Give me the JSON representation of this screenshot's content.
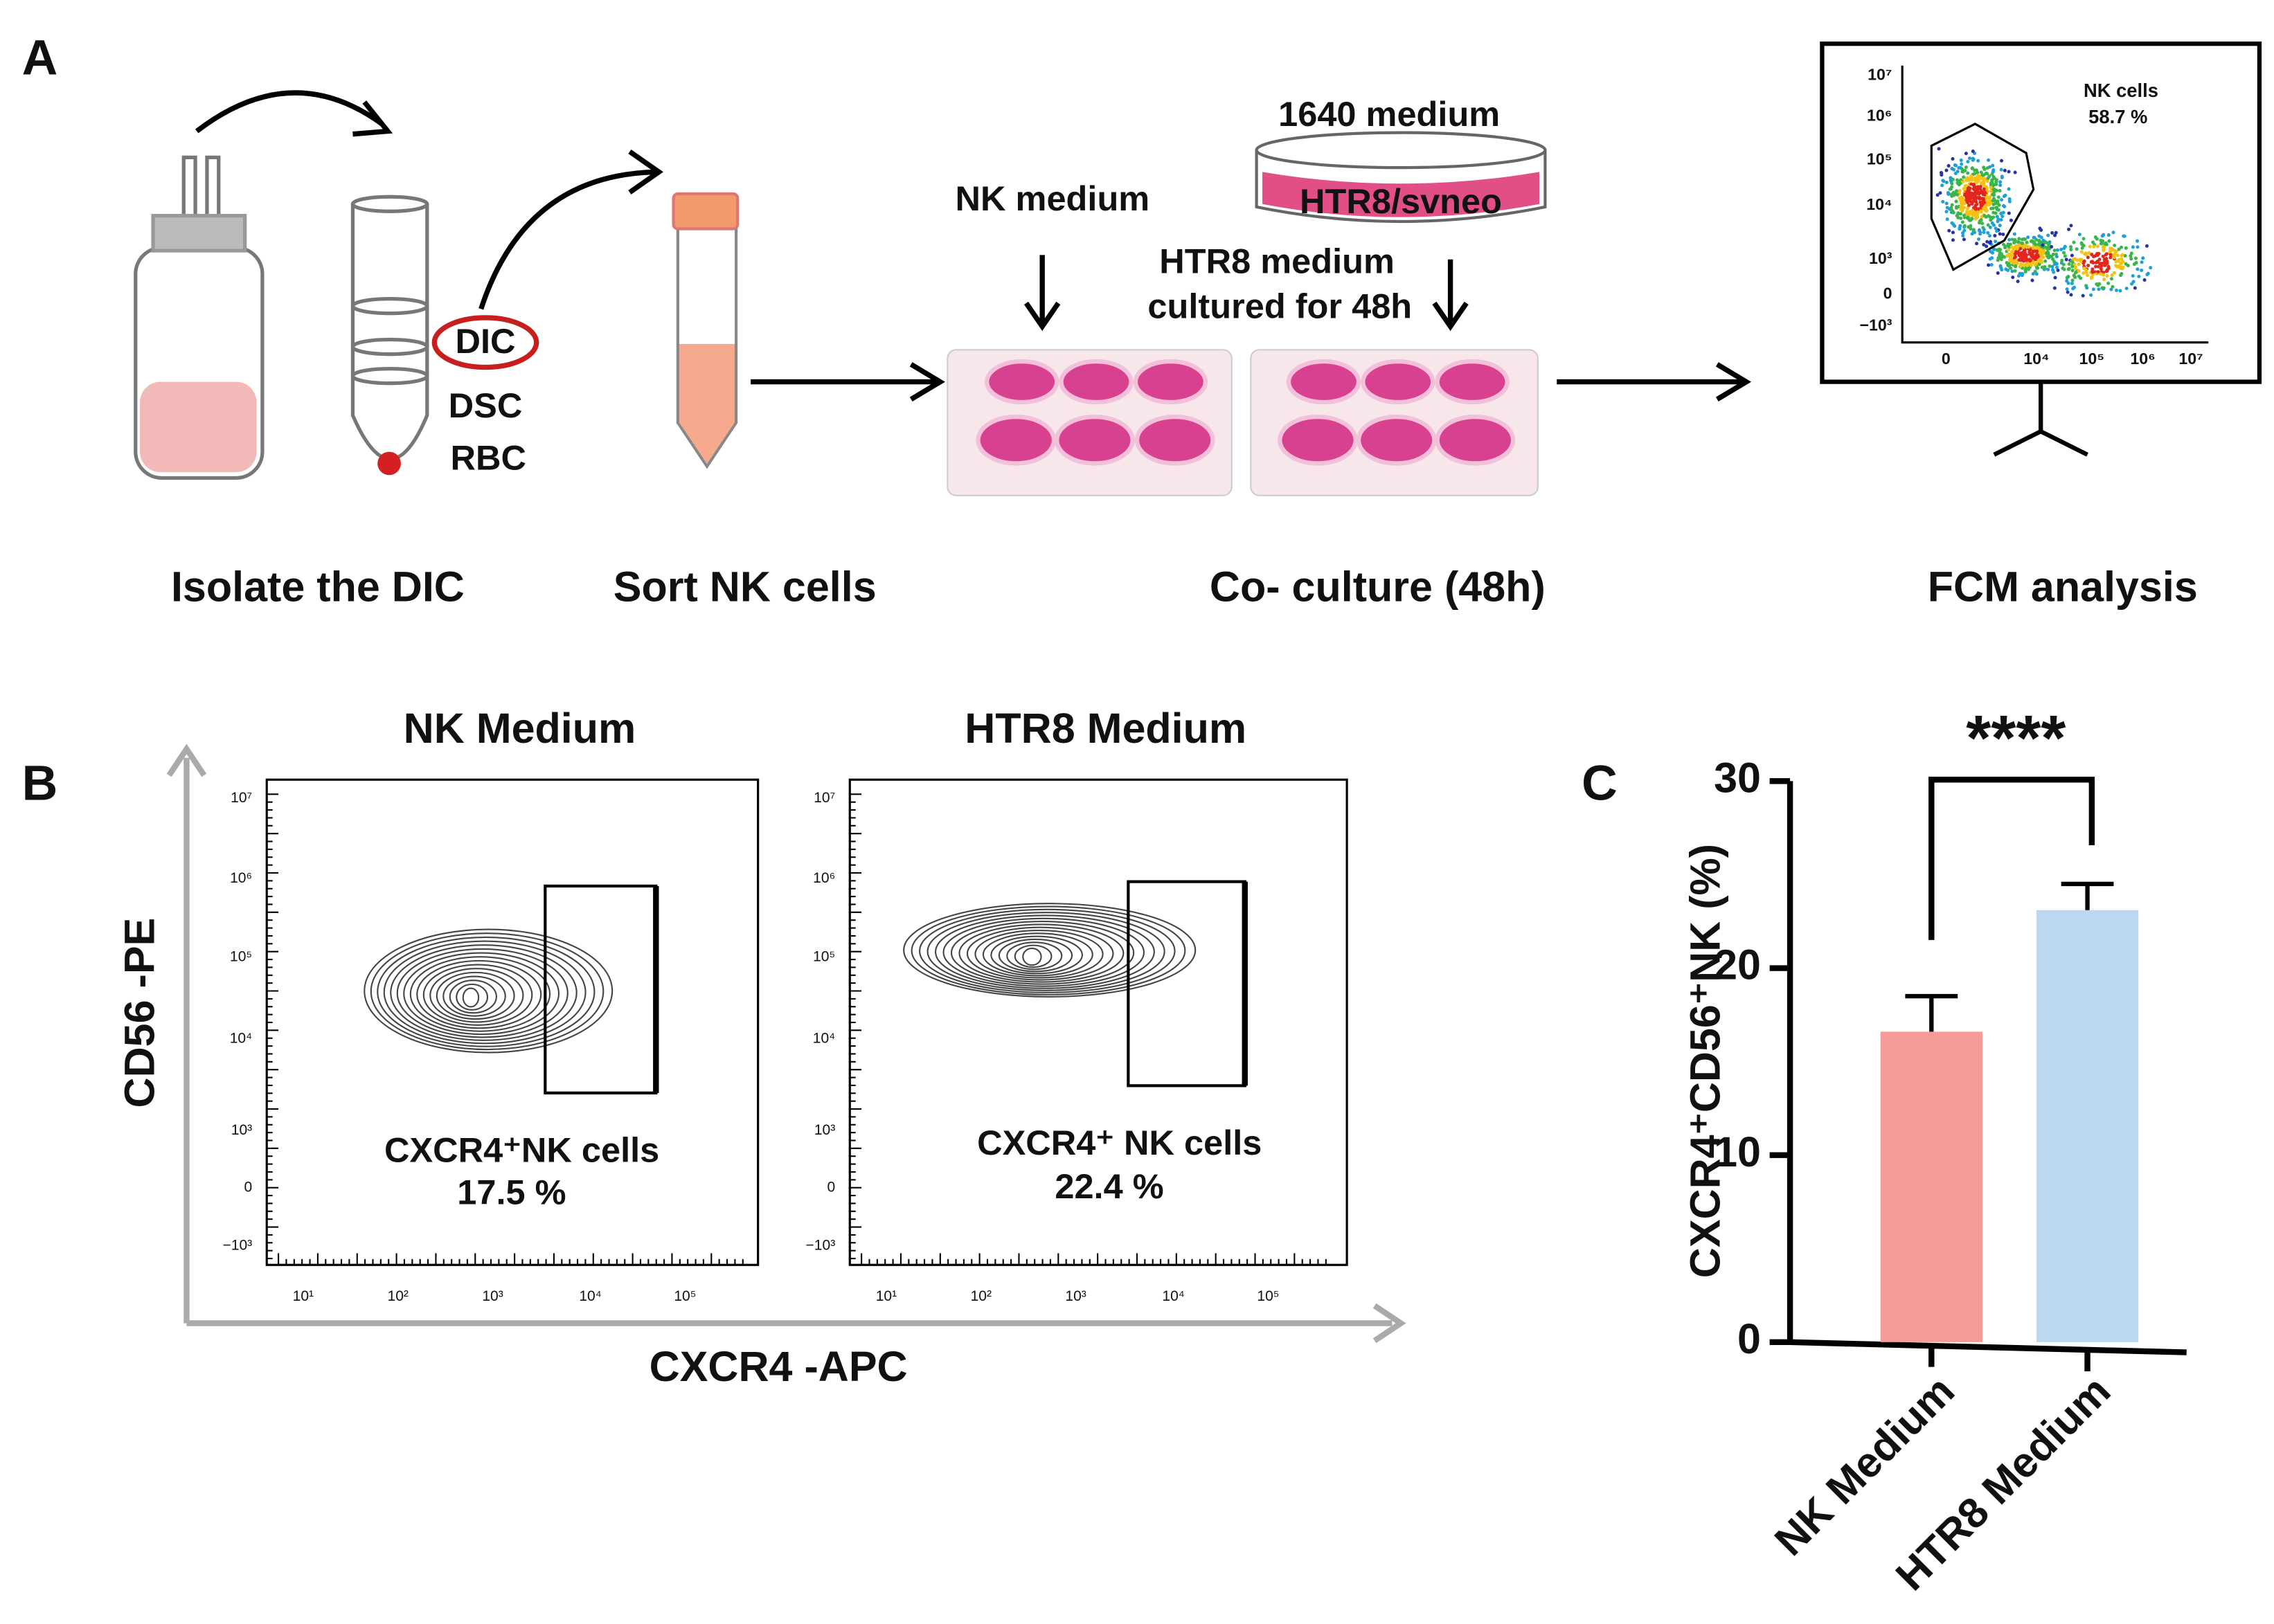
{
  "panel_a": {
    "label": "A",
    "dic": "DIC",
    "dsc": "DSC",
    "rbc": "RBC",
    "nk_medium": "NK medium",
    "dish_top": "1640 medium",
    "dish_label": "HTR8/svneo",
    "htr8_medium": "HTR8 medium",
    "cultured": "cultured for 48h",
    "fcm_gate": "NK cells",
    "fcm_percent": "58.7 %",
    "fcm_yticks": [
      "10⁷",
      "10⁶",
      "10⁵",
      "10⁴",
      "10³",
      "0",
      "−10³"
    ],
    "fcm_xticks": [
      "0",
      "10⁴",
      "10⁵",
      "10⁶",
      "10⁷"
    ],
    "steps": [
      "Isolate the DIC",
      "Sort NK cells",
      "Co- culture (48h)",
      "FCM analysis"
    ]
  },
  "panel_b": {
    "label": "B",
    "y_axis": "CD56 -PE",
    "x_axis": "CXCR4 -APC",
    "yticks": [
      "10⁷",
      "10⁶",
      "10⁵",
      "10⁴",
      "10³",
      "0",
      "−10³"
    ],
    "xticks": [
      "10¹",
      "10²",
      "10³",
      "10⁴",
      "10⁵"
    ],
    "plots": [
      {
        "title": "NK Medium",
        "gate_label": "CXCR4⁺NK cells",
        "percent": "17.5 %"
      },
      {
        "title": "HTR8 Medium",
        "gate_label": "CXCR4⁺ NK cells",
        "percent": "22.4 %"
      }
    ]
  },
  "chart_data": {
    "type": "bar",
    "label": "C",
    "y_label": "CXCR4⁺CD56⁺NK (%)",
    "categories": [
      "NK Medium",
      "HTR8 Medium"
    ],
    "values": [
      16.6,
      23.1
    ],
    "errors": [
      1.9,
      1.4
    ],
    "colors": [
      "#f79a9a",
      "#bcd7f0"
    ],
    "ylim": [
      0,
      30
    ],
    "yticks": [
      0,
      10,
      20,
      30
    ],
    "annotation": "****"
  }
}
